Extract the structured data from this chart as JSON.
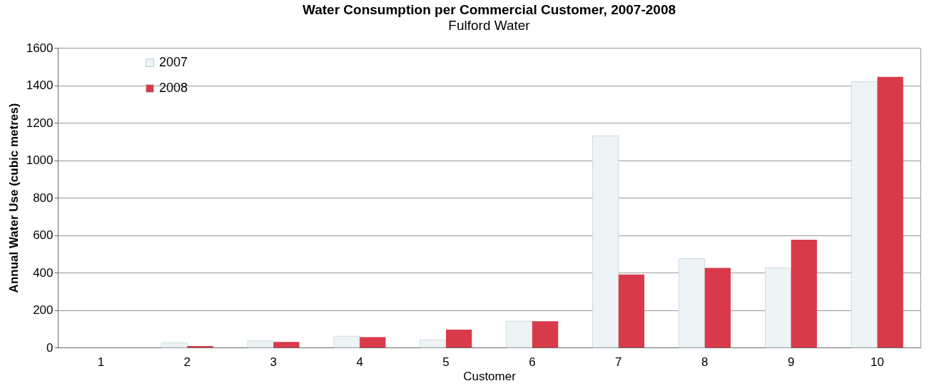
{
  "chart_data": {
    "type": "bar",
    "title": "Water Consumption per Commercial Customer, 2007-2008",
    "subtitle": "Fulford Water",
    "xlabel": "Customer",
    "ylabel": "Annual Water Use (cubic metres)",
    "categories": [
      "1",
      "2",
      "3",
      "4",
      "5",
      "6",
      "7",
      "8",
      "9",
      "10"
    ],
    "series": [
      {
        "name": "2007",
        "color": "#eef3f5",
        "values": [
          0,
          25,
          35,
          60,
          40,
          140,
          1130,
          475,
          425,
          1420
        ]
      },
      {
        "name": "2008",
        "color": "#d93a4a",
        "values": [
          0,
          8,
          30,
          55,
          95,
          140,
          390,
          425,
          575,
          1445
        ]
      }
    ],
    "ylim": [
      0,
      1600
    ],
    "yticks": [
      0,
      200,
      400,
      600,
      800,
      1000,
      1200,
      1400,
      1600
    ],
    "grid": "y",
    "legend": "top left"
  }
}
